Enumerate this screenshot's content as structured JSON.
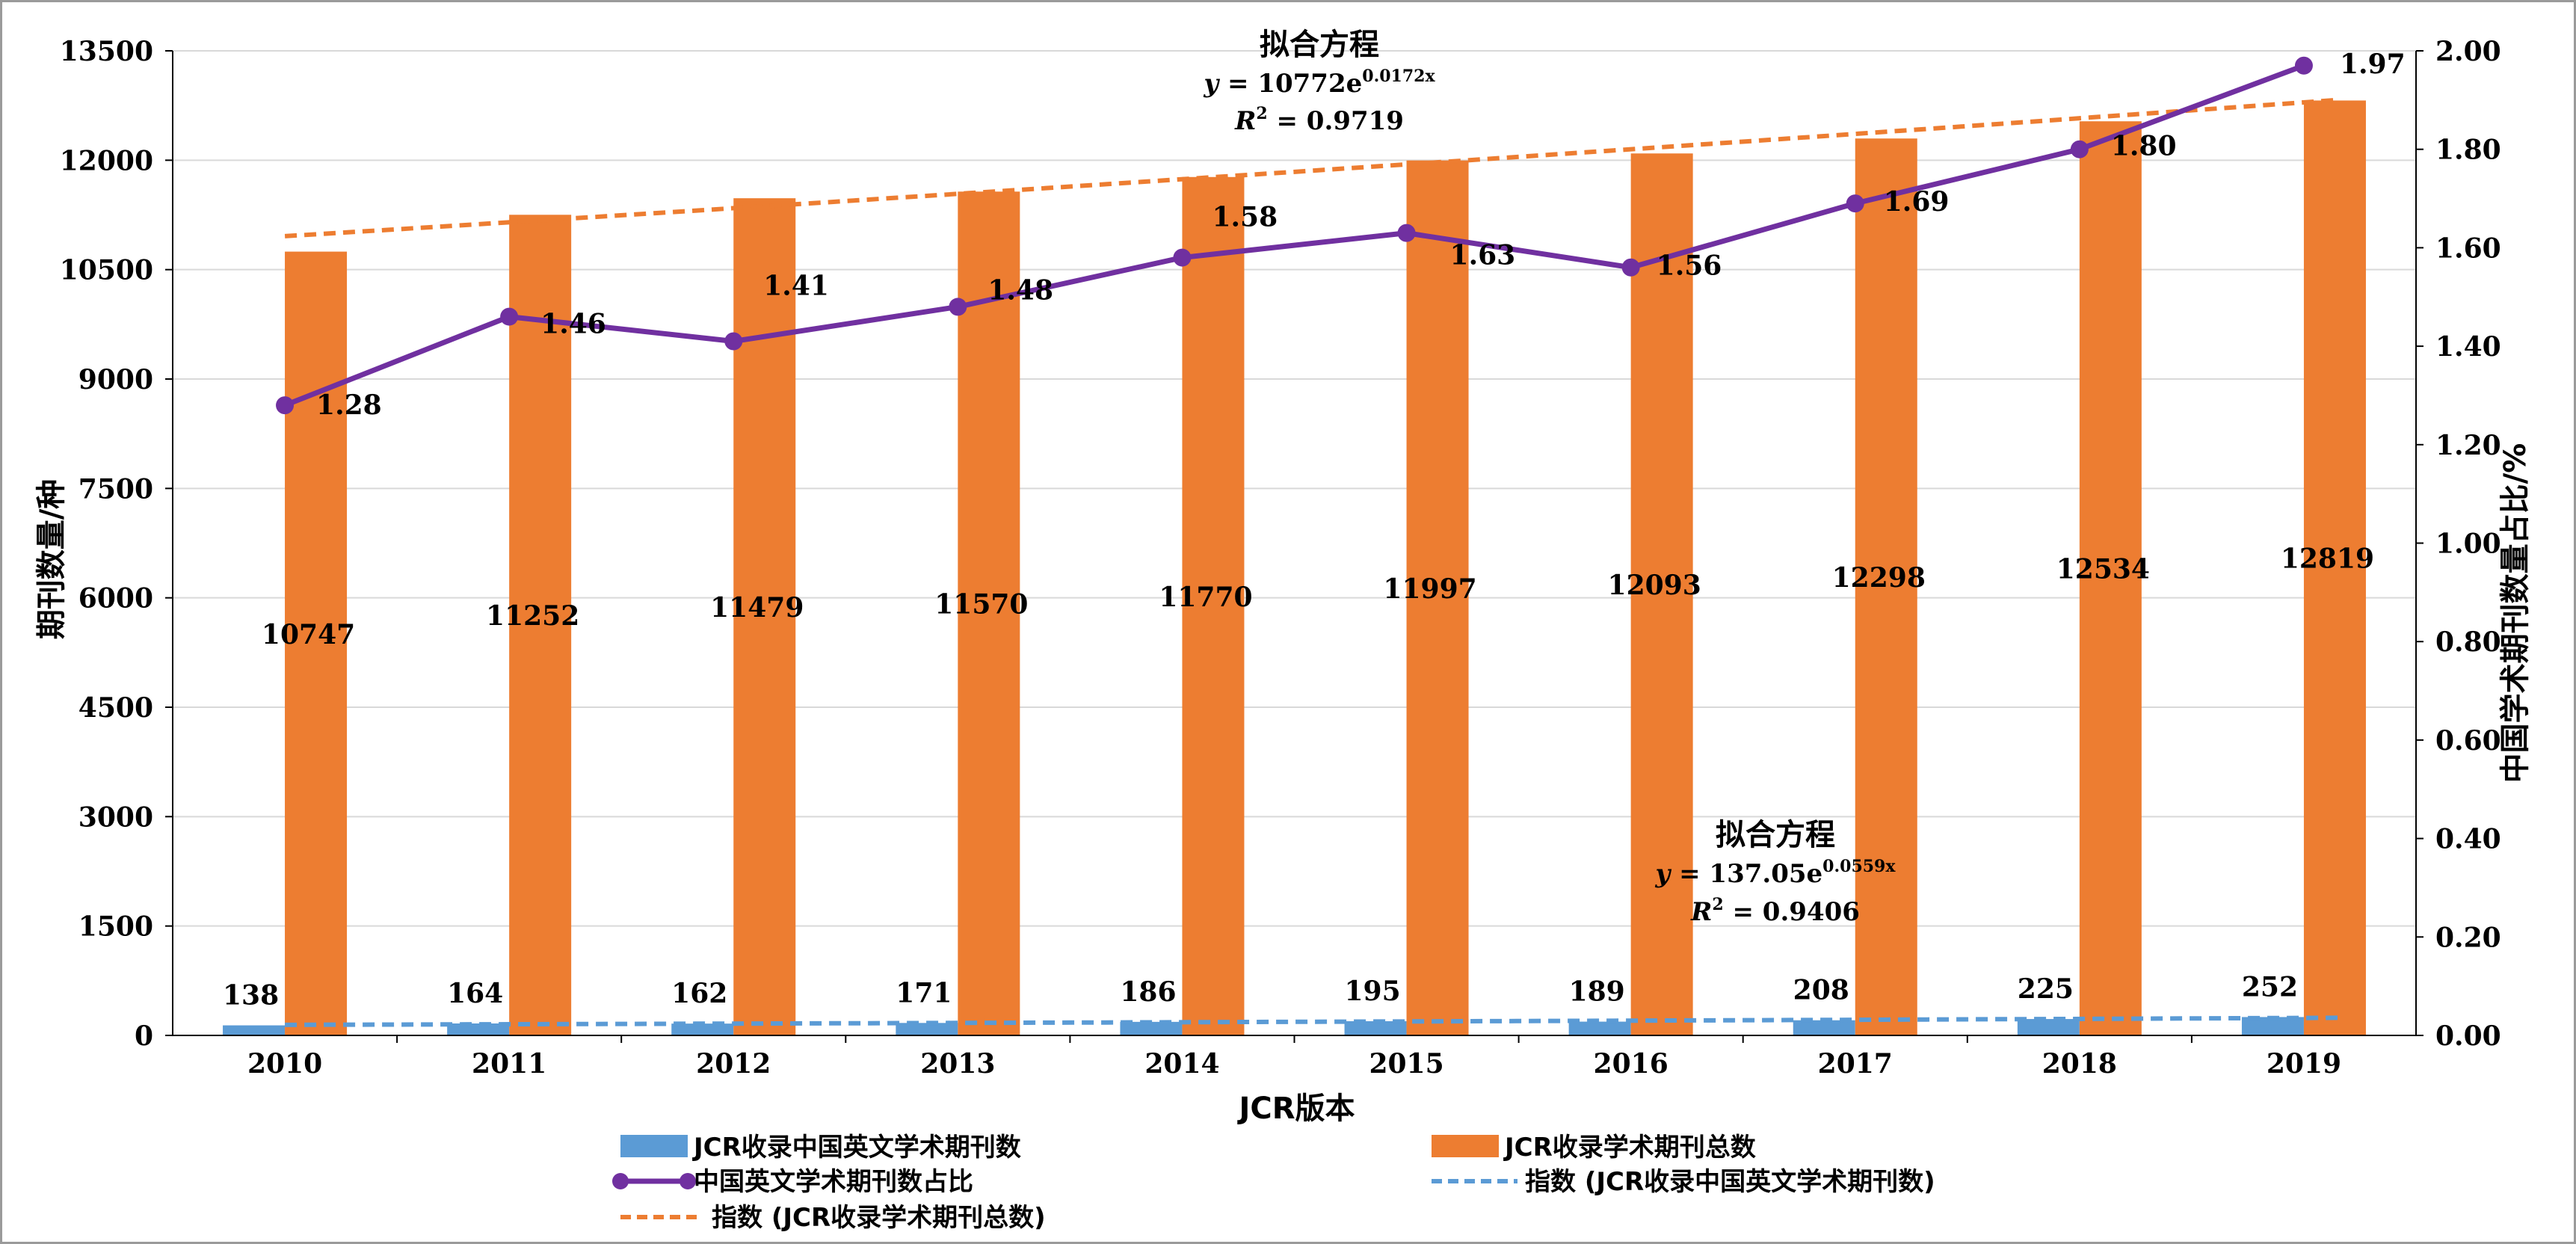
{
  "chart_data": {
    "type": "bar",
    "xlabel": "JCR版本",
    "ylabel": "期刊数量/种",
    "y2label": "中国学术期刊数量占比/%",
    "categories": [
      "2010",
      "2011",
      "2012",
      "2013",
      "2014",
      "2015",
      "2016",
      "2017",
      "2018",
      "2019"
    ],
    "ylim": [
      0,
      13500
    ],
    "yticks": [
      "0",
      "1500",
      "3000",
      "4500",
      "6000",
      "7500",
      "9000",
      "10500",
      "12000",
      "13500"
    ],
    "y2lim": [
      0,
      2.0
    ],
    "y2ticks": [
      "0.00",
      "0.20",
      "0.40",
      "0.60",
      "0.80",
      "1.00",
      "1.20",
      "1.40",
      "1.60",
      "1.80",
      "2.00"
    ],
    "grid": true,
    "legend_position": "bottom",
    "series": [
      {
        "name": "JCR收录中国英文学术期刊数",
        "kind": "bar",
        "axis": "left",
        "color": "#5b9bd5",
        "values": [
          138,
          164,
          162,
          171,
          186,
          195,
          189,
          208,
          225,
          252
        ],
        "labels": [
          "138",
          "164",
          "162",
          "171",
          "186",
          "195",
          "189",
          "208",
          "225",
          "252"
        ]
      },
      {
        "name": "JCR收录学术期刊总数",
        "kind": "bar",
        "axis": "left",
        "color": "#ed7d31",
        "values": [
          10747,
          11252,
          11479,
          11570,
          11770,
          11997,
          12093,
          12298,
          12534,
          12819
        ],
        "labels": [
          "10747",
          "11252",
          "11479",
          "11570",
          "11770",
          "11997",
          "12093",
          "12298",
          "12534",
          "12819"
        ]
      },
      {
        "name": "中国英文学术期刊数占比",
        "kind": "line",
        "axis": "right",
        "color": "#7030a0",
        "values": [
          1.28,
          1.46,
          1.41,
          1.48,
          1.58,
          1.63,
          1.56,
          1.69,
          1.8,
          1.97
        ],
        "labels": [
          "1.28",
          "1.46",
          "1.41",
          "1.48",
          "1.58",
          "1.63",
          "1.56",
          "1.69",
          "1.80",
          "1.97"
        ]
      },
      {
        "name": "指数 (JCR收录中国英文学术期刊数)",
        "kind": "trend",
        "axis": "left",
        "color": "#5b9bd5",
        "equation": {
          "coefficient": 137.05,
          "exponent": 0.0559
        }
      },
      {
        "name": "指数 (JCR收录学术期刊总数)",
        "kind": "trend",
        "axis": "left",
        "color": "#ed7d31",
        "equation": {
          "coefficient": 10772,
          "exponent": 0.0172
        }
      }
    ],
    "annotations": [
      {
        "title": "拟合方程",
        "y_prefix": "y",
        "equation_base": " = 10772e",
        "equation_exp": "0.0172x",
        "r2_label": "R",
        "r2_value": " = 0.9719"
      },
      {
        "title": "拟合方程",
        "y_prefix": "y",
        "equation_base": " = 137.05e",
        "equation_exp": "0.0559x",
        "r2_label": "R",
        "r2_value": " = 0.9406"
      }
    ]
  }
}
